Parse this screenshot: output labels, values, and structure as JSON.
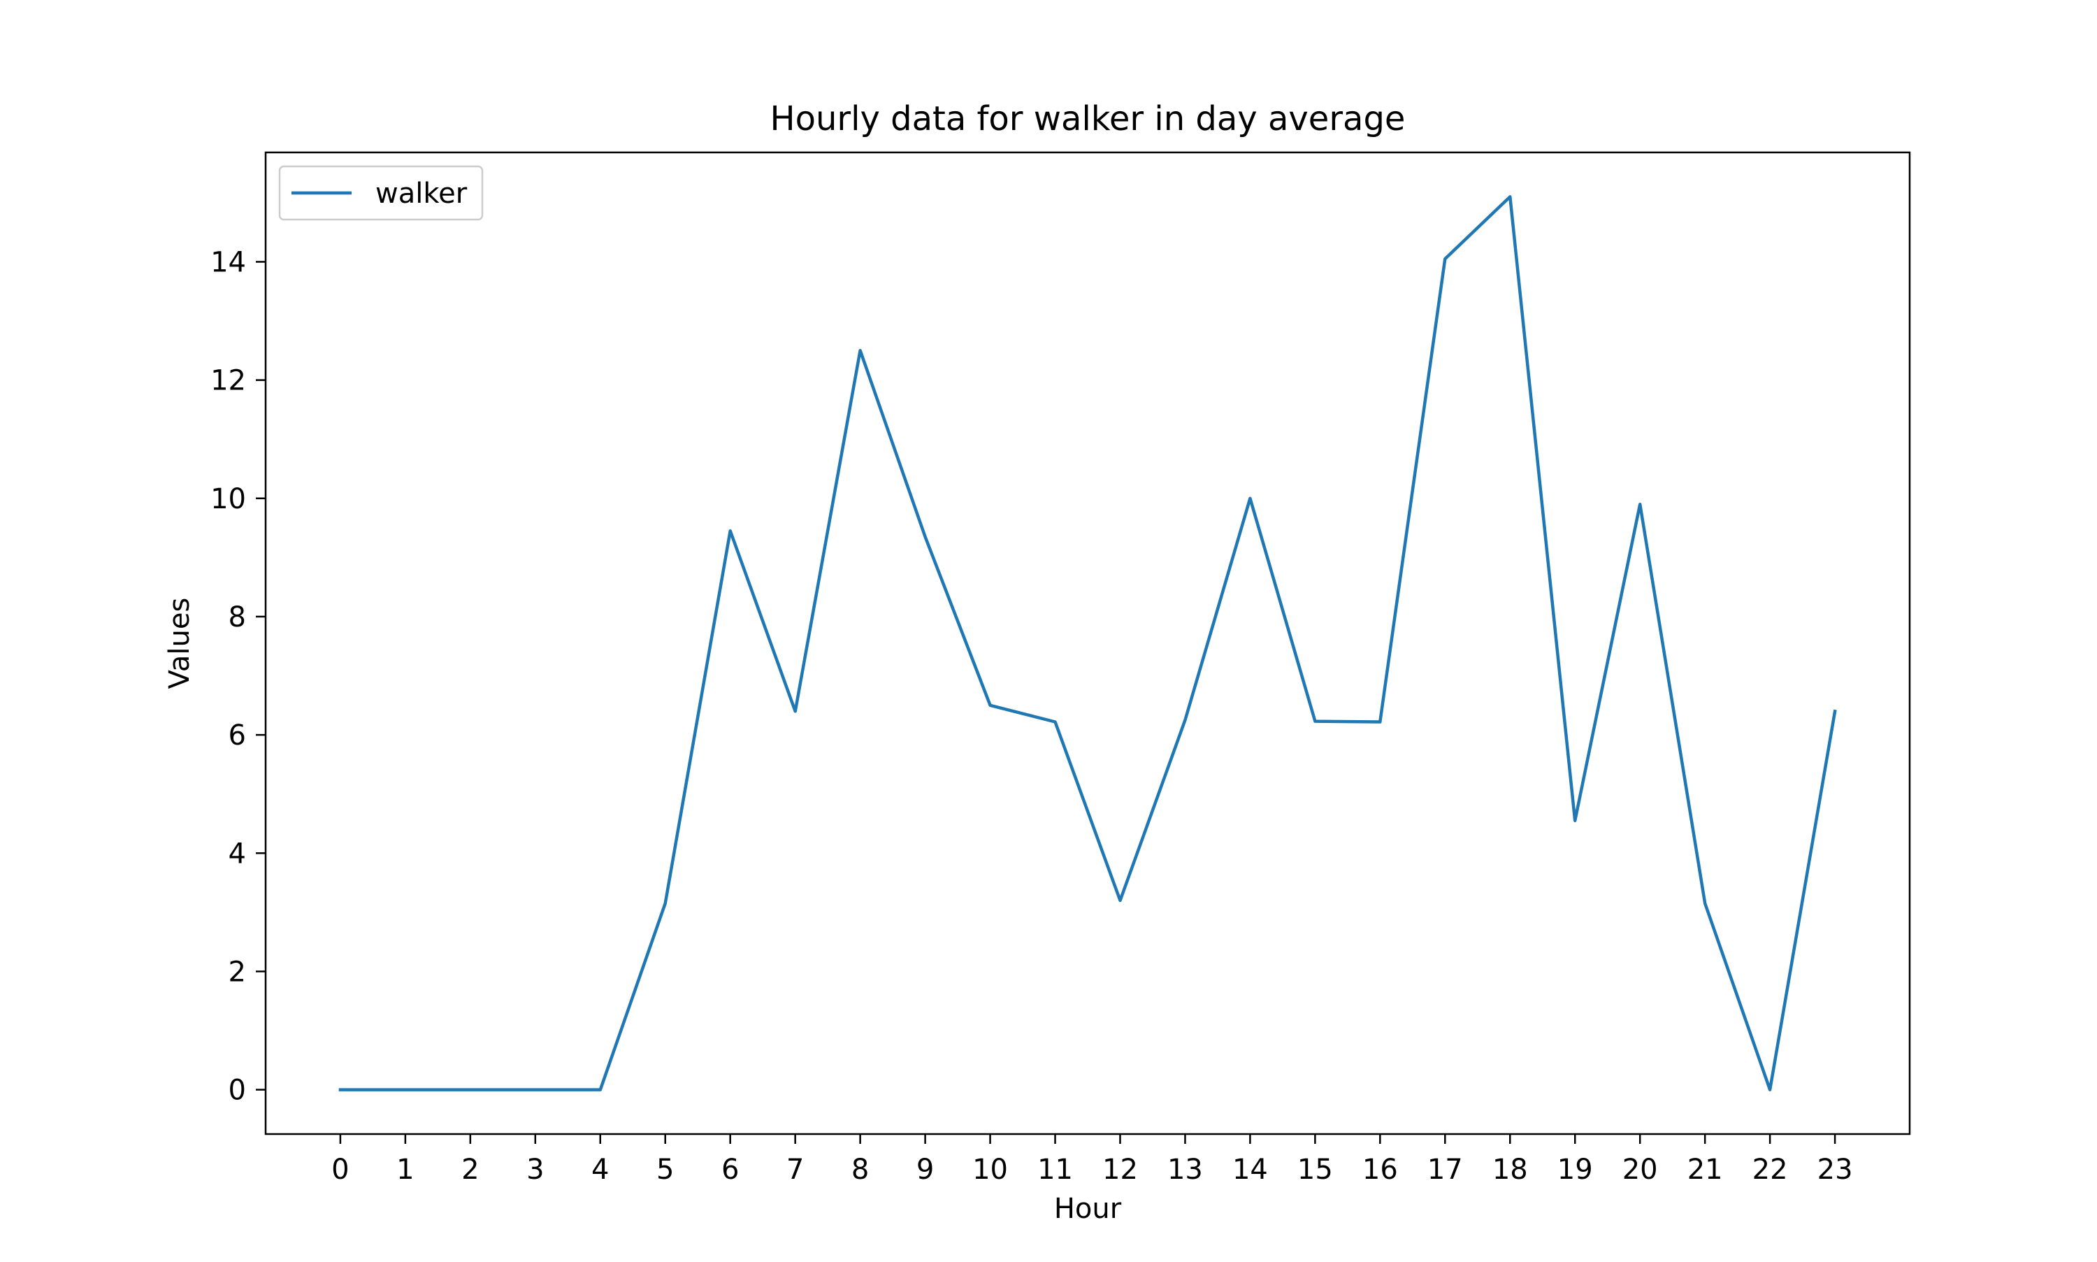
{
  "chart_data": {
    "type": "line",
    "title": "Hourly data for walker in day average",
    "xlabel": "Hour",
    "ylabel": "Values",
    "x": [
      0,
      1,
      2,
      3,
      4,
      5,
      6,
      7,
      8,
      9,
      10,
      11,
      12,
      13,
      14,
      15,
      16,
      17,
      18,
      19,
      20,
      21,
      22,
      23
    ],
    "x_tick_labels": [
      "0",
      "1",
      "2",
      "3",
      "4",
      "5",
      "6",
      "7",
      "8",
      "9",
      "10",
      "11",
      "12",
      "13",
      "14",
      "15",
      "16",
      "17",
      "18",
      "19",
      "20",
      "21",
      "22",
      "23"
    ],
    "y_ticks": [
      0,
      2,
      4,
      6,
      8,
      10,
      12,
      14
    ],
    "y_tick_labels": [
      "0",
      "2",
      "4",
      "6",
      "8",
      "10",
      "12",
      "14"
    ],
    "xlim": [
      -1.15,
      24.15
    ],
    "ylim": [
      -0.75,
      15.85
    ],
    "grid": false,
    "legend_position": "upper left",
    "series": [
      {
        "name": "walker",
        "color": "#1f77b4",
        "values": [
          0,
          0,
          0,
          0,
          0,
          3.15,
          9.45,
          6.4,
          12.5,
          9.35,
          6.5,
          6.22,
          3.2,
          6.25,
          10.0,
          6.23,
          6.22,
          14.05,
          15.1,
          4.55,
          9.9,
          3.15,
          0,
          6.4
        ]
      }
    ]
  }
}
